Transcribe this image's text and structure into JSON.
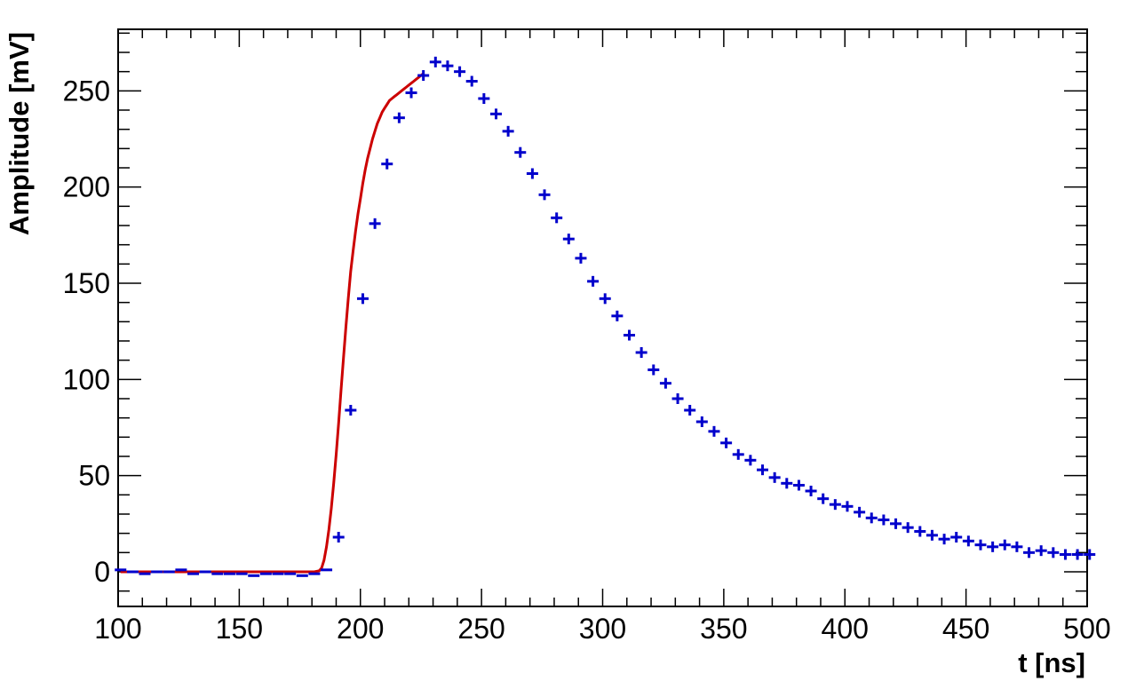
{
  "chart_data": {
    "type": "scatter",
    "title": "",
    "xlabel": "t [ns]",
    "ylabel": "Amplitude [mV]",
    "xlim": [
      100,
      500
    ],
    "ylim": [
      -18,
      282
    ],
    "x_ticks": [
      "100",
      "150",
      "200",
      "250",
      "300",
      "350",
      "400",
      "450",
      "500"
    ],
    "y_ticks": [
      "0",
      "50",
      "100",
      "150",
      "200",
      "250"
    ],
    "grid": false,
    "legend": "none",
    "colors": {
      "points": "#0000cc",
      "fit": "#cc0000",
      "axes": "#000000"
    },
    "series": [
      {
        "kind": "points",
        "x": [
          101,
          106,
          111,
          116,
          121,
          126,
          131,
          136,
          141,
          146,
          151,
          156,
          161,
          166,
          171,
          176,
          181,
          186,
          191,
          196,
          201,
          206,
          211,
          216,
          221,
          226,
          231,
          236,
          241,
          246,
          251,
          256,
          261,
          266,
          271,
          276,
          281,
          286,
          291,
          296,
          301,
          306,
          311,
          316,
          321,
          326,
          331,
          336,
          341,
          346,
          351,
          356,
          361,
          366,
          371,
          376,
          381,
          386,
          391,
          396,
          401,
          406,
          411,
          416,
          421,
          426,
          431,
          436,
          441,
          446,
          451,
          456,
          461,
          466,
          471,
          476,
          481,
          486,
          491,
          496,
          501
        ],
        "y": [
          1,
          0,
          -1,
          0,
          0,
          1,
          -1,
          0,
          -1,
          -1,
          -1,
          -2,
          -1,
          -1,
          -1,
          -2,
          -1,
          1,
          18,
          84,
          142,
          181,
          212,
          236,
          249,
          258,
          265,
          263,
          260,
          255,
          246,
          238,
          229,
          218,
          207,
          196,
          184,
          173,
          163,
          151,
          142,
          133,
          123,
          114,
          105,
          98,
          90,
          84,
          78,
          73,
          67,
          61,
          58,
          53,
          49,
          46,
          45,
          42,
          38,
          35,
          34,
          31,
          28,
          27,
          25,
          23,
          21,
          19,
          17,
          18,
          16,
          14,
          13,
          14,
          13,
          10,
          11,
          10,
          9,
          9,
          9
        ]
      },
      {
        "kind": "fit",
        "x": [
          101,
          106,
          111,
          116,
          121,
          126,
          131,
          136,
          141,
          146,
          151,
          156,
          161,
          166,
          171,
          176,
          181,
          183,
          184,
          185,
          186,
          187,
          188,
          189,
          190,
          191,
          192,
          193,
          194,
          195,
          196,
          197,
          198,
          199,
          200,
          201,
          202,
          203,
          204,
          205,
          206,
          207,
          208,
          209,
          210,
          211,
          212,
          213,
          214,
          215,
          216,
          217,
          218,
          219,
          220,
          221,
          222,
          223,
          224,
          225,
          226
        ],
        "y": [
          0,
          0,
          0,
          0,
          0,
          0,
          0,
          0,
          0,
          0,
          0,
          0,
          0,
          0,
          0,
          0,
          0,
          0.5,
          2,
          6,
          13,
          22,
          33,
          46,
          61,
          77,
          94,
          111,
          127,
          142,
          156,
          167,
          177,
          186,
          194,
          202,
          209,
          215,
          220,
          225,
          229,
          233,
          236,
          239,
          241,
          243,
          245,
          246,
          247,
          248,
          249,
          250,
          251,
          252,
          253,
          254,
          255,
          256,
          257,
          258,
          259
        ]
      }
    ]
  }
}
